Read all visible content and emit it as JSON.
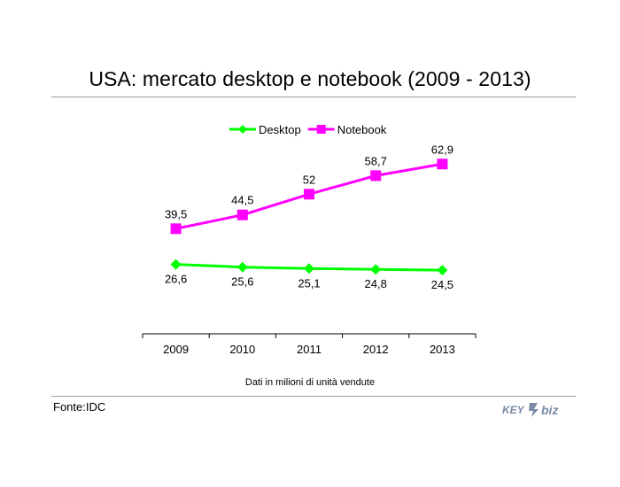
{
  "title": "USA: mercato desktop e notebook (2009 - 2013)",
  "footnote": "Dati in milioni di unità vendute",
  "source": "Fonte:IDC",
  "logo": {
    "text_left": "KEY",
    "text_right": "biz"
  },
  "colors": {
    "desktop": "#00ff00",
    "notebook": "#ff00ff",
    "axis": "#000000",
    "rule": "#9a9a9a",
    "logo": "#7a8aa6"
  },
  "chart_data": {
    "type": "line",
    "categories": [
      "2009",
      "2010",
      "2011",
      "2012",
      "2013"
    ],
    "legend_position": "top-center",
    "grid": false,
    "series": [
      {
        "name": "Desktop",
        "values": [
          26.6,
          25.6,
          25.1,
          24.8,
          24.5
        ],
        "labels": [
          "26,6",
          "25,6",
          "25,1",
          "24,8",
          "24,5"
        ],
        "label_position": "below",
        "marker": "diamond"
      },
      {
        "name": "Notebook",
        "values": [
          39.5,
          44.5,
          52,
          58.7,
          62.9
        ],
        "labels": [
          "39,5",
          "44,5",
          "52",
          "58,7",
          "62,9"
        ],
        "label_position": "above",
        "marker": "square"
      }
    ]
  }
}
